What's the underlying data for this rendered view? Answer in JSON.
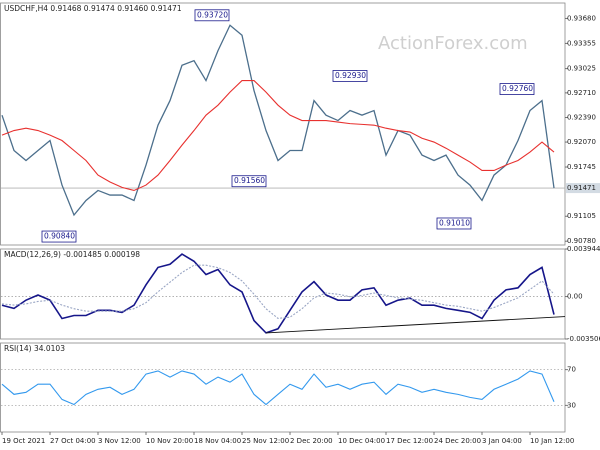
{
  "chart_data": [
    {
      "type": "line",
      "title": "USDCHF,H4  0.91468 0.91474 0.91460 0.91471",
      "watermark": "ActionForex.com",
      "ylim": [
        0.9073,
        0.9388
      ],
      "yticks": [
        {
          "value": 0.9368,
          "label": "0.93680"
        },
        0.93355,
        0.93025,
        {
          "value": 0.9271,
          "label": "0.92710"
        },
        {
          "value": 0.9239,
          "label": "0.92390"
        },
        {
          "value": 0.9207,
          "label": "0.92070"
        },
        0.91745,
        0.91105,
        {
          "value": 0.9078,
          "label": "0.90780"
        }
      ],
      "series": [
        {
          "color": "#4c6f8c",
          "values": [
            0.9242,
            0.9196,
            0.9183,
            0.9196,
            0.9209,
            0.9151,
            0.9112,
            0.9131,
            0.9144,
            0.9138,
            0.9138,
            0.9131,
            0.9177,
            0.9229,
            0.9261,
            0.9307,
            0.9313,
            0.9287,
            0.9326,
            0.9359,
            0.9346,
            0.9274,
            0.9222,
            0.9183,
            0.9196,
            0.9196,
            0.9261,
            0.9242,
            0.9235,
            0.9248,
            0.9242,
            0.9248,
            0.919,
            0.9222,
            0.9216,
            0.919,
            0.9183,
            0.919,
            0.9164,
            0.9151,
            0.9131,
            0.9164,
            0.9177,
            0.9209,
            0.9248,
            0.9261,
            0.91471
          ]
        },
        {
          "color": "#e8312f",
          "values": [
            0.9216,
            0.9222,
            0.9225,
            0.9222,
            0.9216,
            0.9209,
            0.9196,
            0.9183,
            0.9164,
            0.9155,
            0.9148,
            0.9144,
            0.9151,
            0.9164,
            0.9183,
            0.9203,
            0.9222,
            0.9242,
            0.9255,
            0.9272,
            0.9287,
            0.9287,
            0.9272,
            0.9255,
            0.9242,
            0.9235,
            0.9235,
            0.9235,
            0.9233,
            0.9231,
            0.923,
            0.9229,
            0.9225,
            0.9222,
            0.922,
            0.9212,
            0.9207,
            0.9199,
            0.919,
            0.9181,
            0.917,
            0.917,
            0.9177,
            0.9183,
            0.9194,
            0.9207,
            0.9194
          ]
        }
      ],
      "last_price": 0.91471,
      "annotations": [
        {
          "value": 0.9372,
          "label": "0.93720"
        },
        {
          "value": 0.9293,
          "label": "0.92930"
        },
        {
          "value": 0.9276,
          "label": "0.92760"
        },
        {
          "value": 0.9156,
          "label": "0.91560"
        },
        {
          "value": 0.9084,
          "label": "0.90840"
        },
        {
          "value": 0.9101,
          "label": "0.91010"
        }
      ]
    },
    {
      "type": "line",
      "title": "MACD(12,26,9) -0.001485 0.000198",
      "ylim": [
        -0.003506,
        0.003944
      ],
      "yticks": [
        0.003944,
        {
          "value": 0,
          "label": "0.00"
        },
        -0.003506
      ],
      "series": [
        {
          "color": "#16168a",
          "values": [
            -0.00071,
            -0.00097,
            -0.00029,
            0.00014,
            -0.00029,
            -0.00181,
            -0.00156,
            -0.00156,
            -0.00113,
            -0.00113,
            -0.0013,
            -0.00071,
            0.00098,
            0.00242,
            0.00268,
            0.00352,
            0.00293,
            0.00183,
            0.00225,
            0.00098,
            0.00039,
            -0.00198,
            -0.003,
            -0.00266,
            -0.00113,
            0.00039,
            0.00124,
            0.00014,
            -0.00029,
            -0.00029,
            0.00056,
            0.00073,
            -0.00071,
            -0.00029,
            -0.00012,
            -0.00071,
            -0.00071,
            -0.00097,
            -0.00113,
            -0.0013,
            -0.00181,
            -0.00029,
            0.00056,
            0.00073,
            0.00183,
            0.00242,
            -0.001485
          ]
        },
        {
          "color": "#9aa6c4",
          "dashed": true,
          "values": [
            -0.0006,
            -0.0007,
            -0.0006,
            -0.0004,
            -0.0003,
            -0.0007,
            -0.001,
            -0.0012,
            -0.0012,
            -0.0012,
            -0.0012,
            -0.001,
            -0.0005,
            0.0004,
            0.0012,
            0.002,
            0.0026,
            0.0026,
            0.0024,
            0.002,
            0.0013,
            0.0002,
            -0.001,
            -0.0018,
            -0.0017,
            -0.001,
            -0.0001,
            0.0003,
            0.0002,
            0,
            0.0001,
            0.0003,
            0.0001,
            -0.0001,
            -0.0002,
            -0.0003,
            -0.0005,
            -0.0007,
            -0.0008,
            -0.001,
            -0.0012,
            -0.0009,
            -0.0005,
            -0.0001,
            0.0006,
            0.0013,
            0.000198
          ]
        }
      ],
      "trendline": [
        -0.003,
        -0.00165
      ]
    },
    {
      "type": "line",
      "title": "RSI(14) 34.0103",
      "ylim": [
        0,
        100
      ],
      "yticks": [
        70,
        30
      ],
      "series": [
        {
          "color": "#3399ee",
          "values": [
            53.7,
            42.3,
            44.6,
            53.7,
            53.7,
            36.6,
            30.9,
            42.3,
            48,
            50.3,
            42.3,
            48,
            65.1,
            68.6,
            61.7,
            68.6,
            65.1,
            53.7,
            61.7,
            56,
            65.1,
            42.3,
            30.9,
            42.3,
            53.7,
            48,
            65.1,
            50.3,
            53.7,
            48,
            53.7,
            56,
            42.3,
            53.7,
            50.3,
            44.6,
            48,
            44.6,
            42.3,
            38.9,
            36.6,
            48,
            53.7,
            59.4,
            68.6,
            65.1,
            34.0103
          ]
        }
      ],
      "categories": [
        "19 Oct 2021",
        null,
        null,
        null,
        "27 Oct 04:00",
        null,
        null,
        null,
        "3 Nov 12:00",
        null,
        null,
        null,
        "10 Nov 20:00",
        null,
        null,
        null,
        "18 Nov 04:00",
        null,
        null,
        null,
        "25 Nov 12:00",
        null,
        null,
        null,
        "2 Dec 20:00",
        null,
        null,
        null,
        "10 Dec 04:00",
        null,
        null,
        null,
        "17 Dec 12:00",
        null,
        null,
        null,
        "24 Dec 20:00",
        null,
        null,
        null,
        "3 Jan 04:00",
        null,
        null,
        null,
        "10 Jan 12:00",
        null,
        null
      ]
    }
  ]
}
